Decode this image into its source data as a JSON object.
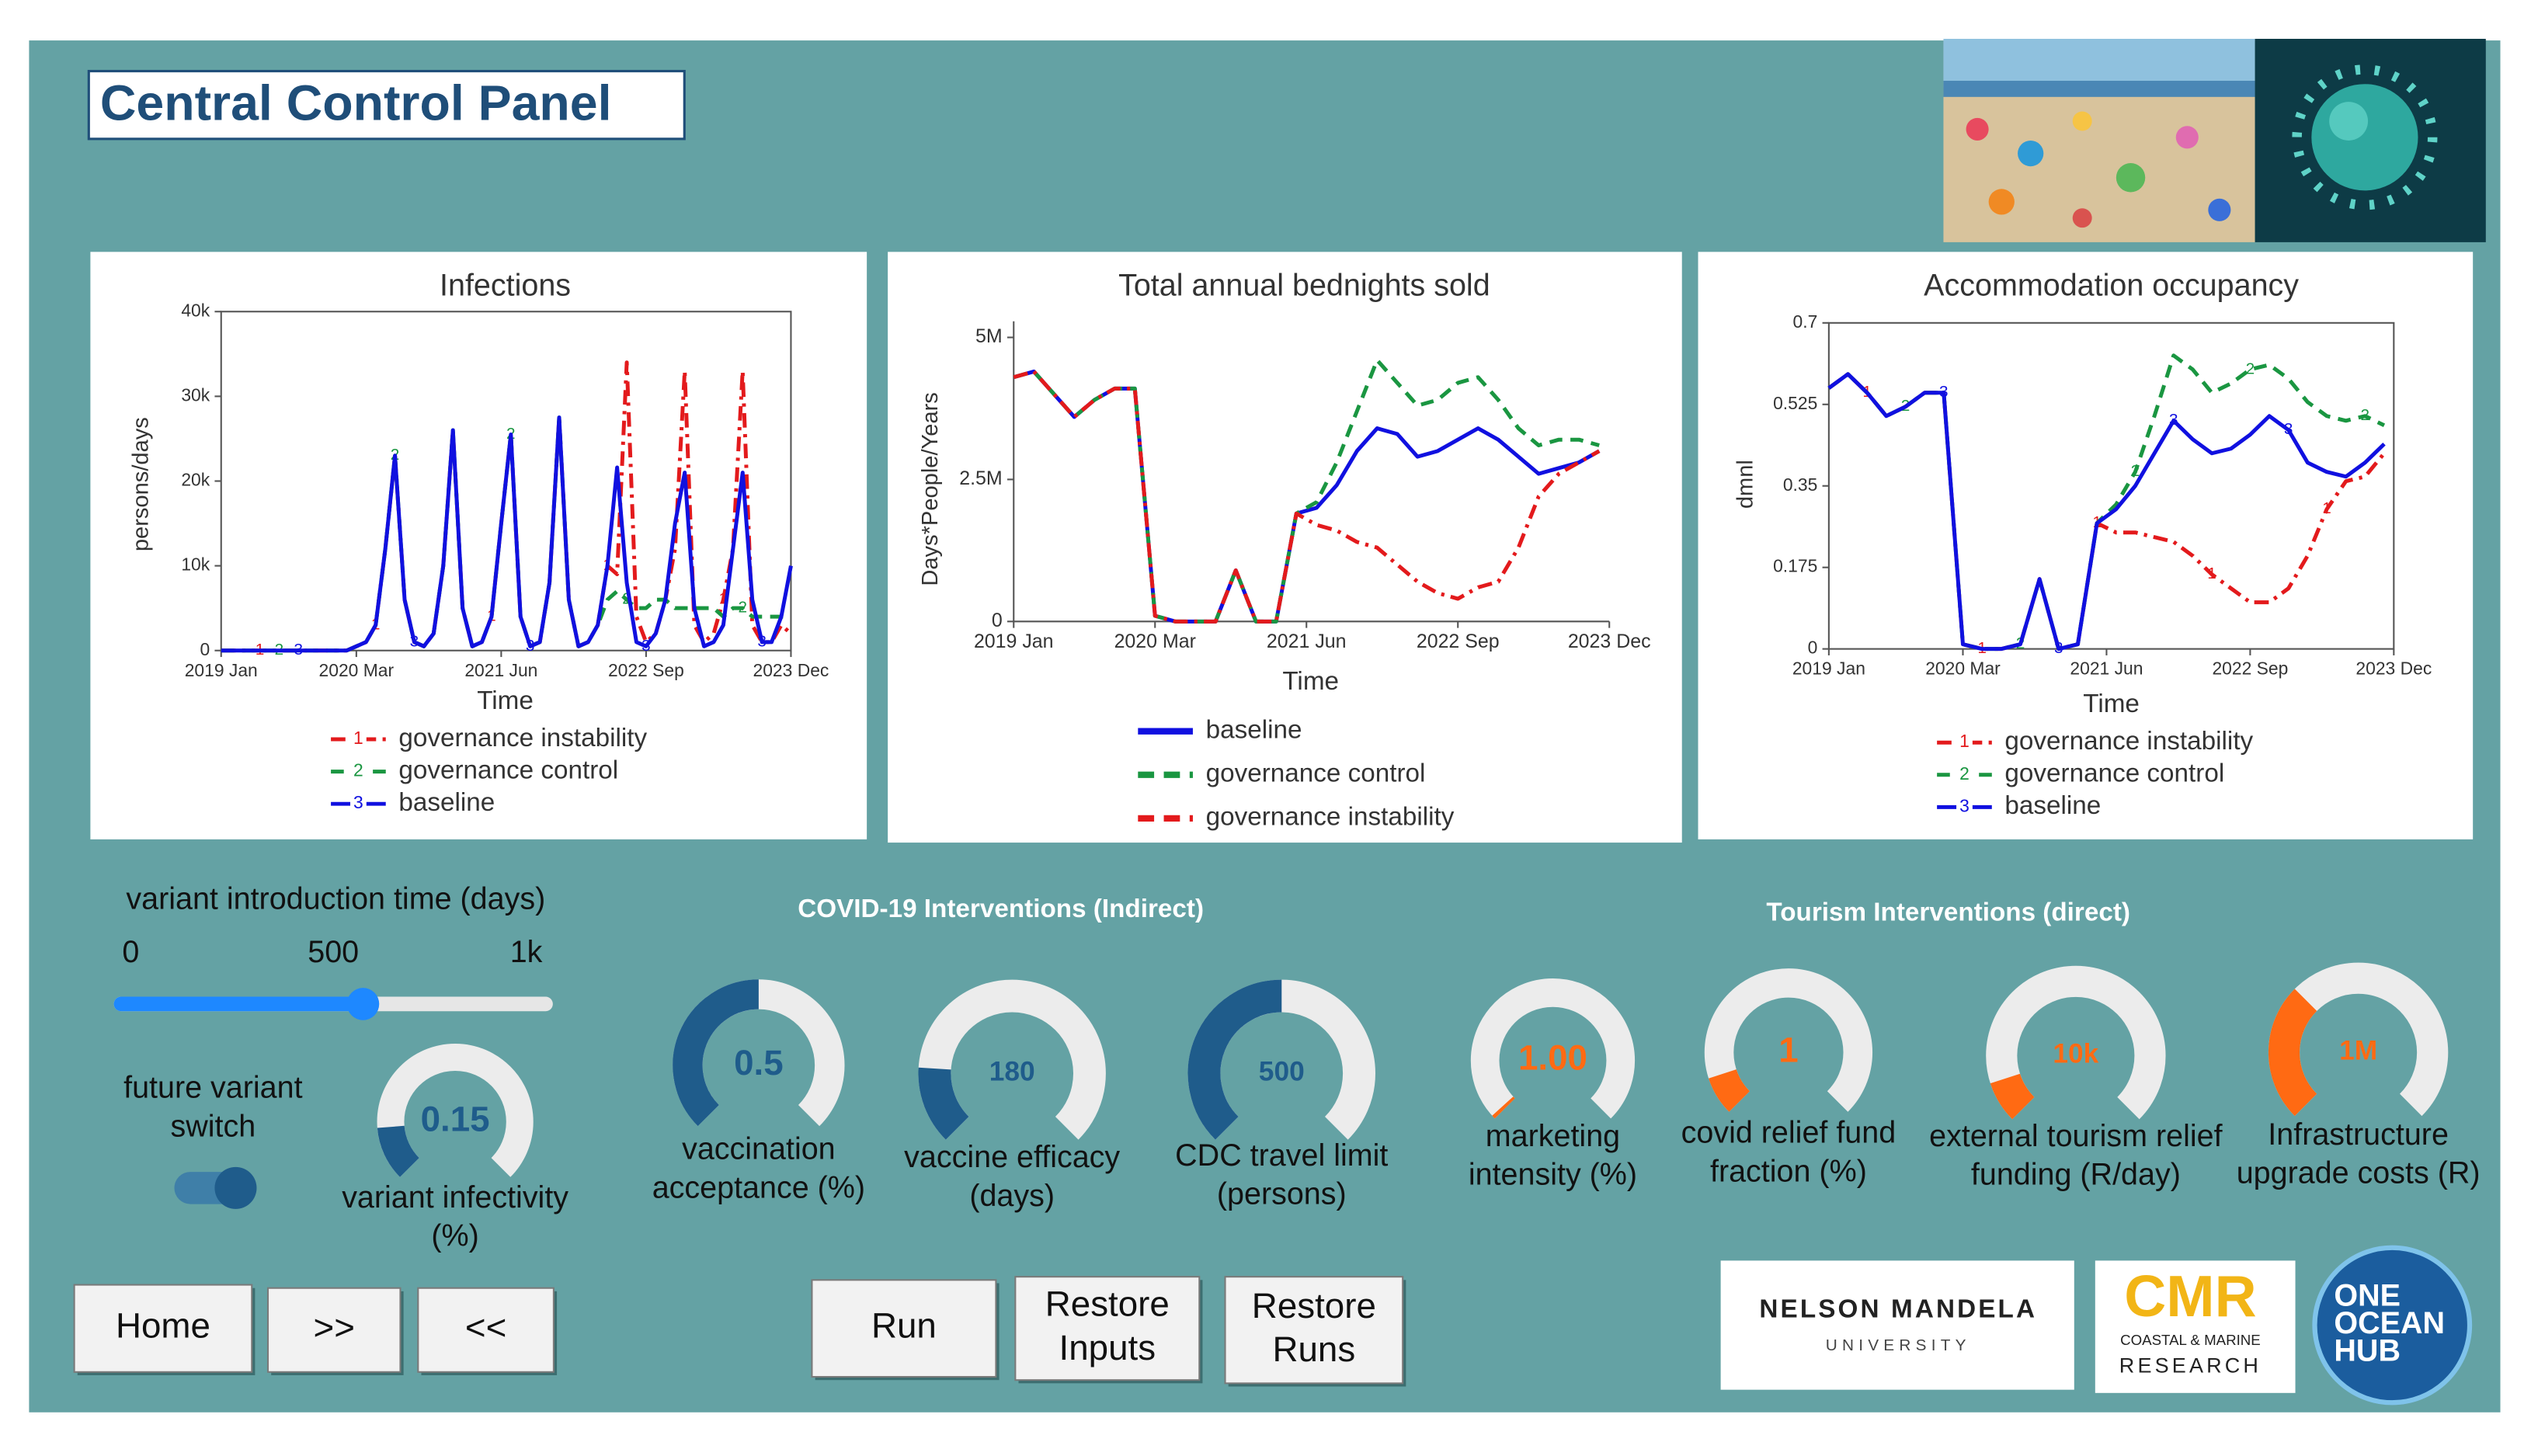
{
  "title": "Central Control Panel",
  "chart_data": [
    {
      "type": "line",
      "title": "Infections",
      "x_label": "Time",
      "y_label": "persons/days",
      "x": [
        "2019-01",
        "2019-02",
        "2019-03",
        "2019-04",
        "2019-05",
        "2019-06",
        "2019-07",
        "2019-08",
        "2019-09",
        "2019-10",
        "2019-11",
        "2019-12",
        "2020-01",
        "2020-02",
        "2020-03",
        "2020-04",
        "2020-05",
        "2020-06",
        "2020-07",
        "2020-08",
        "2020-09",
        "2020-10",
        "2020-11",
        "2020-12",
        "2021-01",
        "2021-02",
        "2021-03",
        "2021-04",
        "2021-05",
        "2021-06",
        "2021-07",
        "2021-08",
        "2021-09",
        "2021-10",
        "2021-11",
        "2021-12",
        "2022-01",
        "2022-02",
        "2022-03",
        "2022-04",
        "2022-05",
        "2022-06",
        "2022-07",
        "2022-08",
        "2022-09",
        "2022-10",
        "2022-11",
        "2022-12",
        "2023-01",
        "2023-02",
        "2023-03",
        "2023-04",
        "2023-05",
        "2023-06",
        "2023-07",
        "2023-08",
        "2023-09",
        "2023-10",
        "2023-11",
        "2023-12"
      ],
      "xlim": [
        "2019-01",
        "2023-12"
      ],
      "xticks": [
        {
          "value": "2019-01",
          "label": "2019 Jan"
        },
        {
          "value": "2020-03",
          "label": "2020 Mar"
        },
        {
          "value": "2021-06",
          "label": "2021 Jun"
        },
        {
          "value": "2022-09",
          "label": "2022 Sep"
        },
        {
          "value": "2023-12",
          "label": "2023 Dec"
        }
      ],
      "ylim": [
        0,
        40000
      ],
      "yticks": [
        0,
        {
          "value": 10000,
          "label": "10k"
        },
        {
          "value": 20000,
          "label": "20k"
        },
        {
          "value": 30000,
          "label": "30k"
        },
        {
          "value": 40000,
          "label": "40k"
        }
      ],
      "series": [
        {
          "name": "governance instability",
          "marker": "1",
          "color": "#e31a1c",
          "dash": "dashdot",
          "values": [
            0,
            0,
            0,
            0,
            0,
            0,
            0,
            0,
            0,
            0,
            0,
            0,
            0,
            0,
            500,
            1000,
            3000,
            12000,
            23000,
            6000,
            1000,
            500,
            2000,
            10000,
            26000,
            5000,
            500,
            1000,
            4000,
            15000,
            25500,
            4000,
            500,
            1000,
            8000,
            27500,
            6000,
            500,
            1000,
            3000,
            10000,
            9000,
            34000,
            4000,
            1000,
            2000,
            6000,
            12000,
            33000,
            3000,
            1000,
            2000,
            6000,
            12000,
            33000,
            3000,
            1000,
            1000,
            3000,
            2000
          ]
        },
        {
          "name": "governance control",
          "marker": "2",
          "color": "#1a9641",
          "dash": "dashed",
          "values": [
            0,
            0,
            0,
            0,
            0,
            0,
            0,
            0,
            0,
            0,
            0,
            0,
            0,
            0,
            500,
            1000,
            3000,
            12000,
            23000,
            6000,
            1000,
            500,
            2000,
            10000,
            26000,
            5000,
            500,
            1000,
            4000,
            15000,
            25500,
            4000,
            500,
            1000,
            8000,
            27500,
            6000,
            500,
            1000,
            3000,
            6000,
            7000,
            6000,
            5000,
            5000,
            6000,
            6000,
            5000,
            5000,
            5000,
            5000,
            5000,
            4000,
            5000,
            5000,
            4000,
            4000,
            4000,
            4000,
            4000
          ]
        },
        {
          "name": "baseline",
          "marker": "3",
          "color": "#1010e0",
          "dash": "solid",
          "values": [
            0,
            0,
            0,
            0,
            0,
            0,
            0,
            0,
            0,
            0,
            0,
            0,
            0,
            0,
            500,
            1000,
            3000,
            12000,
            23000,
            6000,
            1000,
            500,
            2000,
            10000,
            26000,
            5000,
            500,
            1000,
            4000,
            15000,
            25500,
            4000,
            500,
            1000,
            8000,
            27500,
            6000,
            500,
            1000,
            3000,
            10000,
            21600,
            8000,
            1000,
            500,
            2000,
            6000,
            15000,
            21000,
            5000,
            500,
            1000,
            3000,
            12000,
            21000,
            6000,
            1000,
            1000,
            4000,
            10000
          ]
        }
      ]
    },
    {
      "type": "line",
      "title": "Total annual bednights sold",
      "x_label": "Time",
      "y_label": "Days*People/Years",
      "x": [
        "2019-01",
        "2019-03",
        "2019-05",
        "2019-07",
        "2019-09",
        "2019-11",
        "2020-01",
        "2020-03",
        "2020-05",
        "2020-07",
        "2020-09",
        "2020-11",
        "2021-01",
        "2021-03",
        "2021-05",
        "2021-07",
        "2021-09",
        "2021-11",
        "2022-01",
        "2022-03",
        "2022-05",
        "2022-07",
        "2022-09",
        "2022-11",
        "2023-01",
        "2023-03",
        "2023-05",
        "2023-07",
        "2023-09",
        "2023-11"
      ],
      "xlim": [
        "2019-01",
        "2023-12"
      ],
      "xticks": [
        {
          "value": "2019-01",
          "label": "2019 Jan"
        },
        {
          "value": "2020-03",
          "label": "2020 Mar"
        },
        {
          "value": "2021-06",
          "label": "2021 Jun"
        },
        {
          "value": "2022-09",
          "label": "2022 Sep"
        },
        {
          "value": "2023-12",
          "label": "2023 Dec"
        }
      ],
      "ylim": [
        0,
        5000000
      ],
      "yticks": [
        0,
        {
          "value": 2500000,
          "label": "2.5M"
        },
        {
          "value": 5000000,
          "label": "5M"
        }
      ],
      "series": [
        {
          "name": "baseline",
          "color": "#1010e0",
          "dash": "solid",
          "values": [
            4300000,
            4400000,
            4000000,
            3600000,
            3900000,
            4100000,
            4100000,
            100000,
            0,
            0,
            0,
            900000,
            0,
            0,
            1900000,
            2000000,
            2400000,
            3000000,
            3400000,
            3300000,
            2900000,
            3000000,
            3200000,
            3400000,
            3200000,
            2900000,
            2600000,
            2700000,
            2800000,
            3000000
          ]
        },
        {
          "name": "governance control",
          "color": "#1a9641",
          "dash": "dashed",
          "values": [
            4300000,
            4400000,
            4000000,
            3600000,
            3900000,
            4100000,
            4100000,
            100000,
            0,
            0,
            0,
            900000,
            0,
            0,
            1900000,
            2100000,
            2800000,
            3700000,
            4600000,
            4200000,
            3800000,
            3900000,
            4200000,
            4300000,
            3900000,
            3400000,
            3100000,
            3200000,
            3200000,
            3100000
          ]
        },
        {
          "name": "governance instability",
          "color": "#e31a1c",
          "dash": "dashdot",
          "values": [
            4300000,
            4400000,
            4000000,
            3600000,
            3900000,
            4100000,
            4100000,
            100000,
            0,
            0,
            0,
            900000,
            0,
            0,
            1900000,
            1700000,
            1600000,
            1400000,
            1300000,
            1000000,
            700000,
            500000,
            400000,
            600000,
            700000,
            1300000,
            2200000,
            2600000,
            2800000,
            3000000
          ]
        }
      ]
    },
    {
      "type": "line",
      "title": "Accommodation occupancy",
      "x_label": "Time",
      "y_label": "dmnl",
      "x": [
        "2019-01",
        "2019-03",
        "2019-05",
        "2019-07",
        "2019-09",
        "2019-11",
        "2020-01",
        "2020-03",
        "2020-05",
        "2020-07",
        "2020-09",
        "2020-11",
        "2021-01",
        "2021-03",
        "2021-05",
        "2021-07",
        "2021-09",
        "2021-11",
        "2022-01",
        "2022-03",
        "2022-05",
        "2022-07",
        "2022-09",
        "2022-11",
        "2023-01",
        "2023-03",
        "2023-05",
        "2023-07",
        "2023-09",
        "2023-11"
      ],
      "xlim": [
        "2019-01",
        "2023-12"
      ],
      "xticks": [
        {
          "value": "2019-01",
          "label": "2019 Jan"
        },
        {
          "value": "2020-03",
          "label": "2020 Mar"
        },
        {
          "value": "2021-06",
          "label": "2021 Jun"
        },
        {
          "value": "2022-09",
          "label": "2022 Sep"
        },
        {
          "value": "2023-12",
          "label": "2023 Dec"
        }
      ],
      "ylim": [
        0,
        0.7
      ],
      "yticks": [
        0,
        0.175,
        0.35,
        0.525,
        0.7
      ],
      "series": [
        {
          "name": "governance instability",
          "marker": "1",
          "color": "#e31a1c",
          "dash": "dashdot",
          "values": [
            0.56,
            0.59,
            0.55,
            0.5,
            0.52,
            0.55,
            0.55,
            0.01,
            0,
            0,
            0.01,
            0.15,
            0,
            0.01,
            0.27,
            0.25,
            0.25,
            0.24,
            0.23,
            0.2,
            0.16,
            0.13,
            0.1,
            0.1,
            0.13,
            0.2,
            0.3,
            0.36,
            0.37,
            0.42
          ]
        },
        {
          "name": "governance control",
          "marker": "2",
          "color": "#1a9641",
          "dash": "dashed",
          "values": [
            0.56,
            0.59,
            0.55,
            0.5,
            0.52,
            0.55,
            0.55,
            0.01,
            0,
            0,
            0.01,
            0.15,
            0,
            0.01,
            0.27,
            0.31,
            0.38,
            0.5,
            0.63,
            0.6,
            0.55,
            0.57,
            0.6,
            0.61,
            0.58,
            0.53,
            0.5,
            0.49,
            0.5,
            0.48
          ]
        },
        {
          "name": "baseline",
          "marker": "3",
          "color": "#1010e0",
          "dash": "solid",
          "values": [
            0.56,
            0.59,
            0.55,
            0.5,
            0.52,
            0.55,
            0.55,
            0.01,
            0,
            0,
            0.01,
            0.15,
            0,
            0.01,
            0.27,
            0.3,
            0.35,
            0.42,
            0.49,
            0.45,
            0.42,
            0.43,
            0.46,
            0.5,
            0.47,
            0.4,
            0.38,
            0.37,
            0.4,
            0.44
          ]
        }
      ]
    }
  ],
  "controls": {
    "slider": {
      "label": "variant introduction time (days)",
      "min": 0,
      "max": 1000,
      "value": 570,
      "ticks": [
        0,
        500,
        {
          "value": 1000,
          "label": "1k"
        }
      ]
    },
    "switch": {
      "label": [
        "future variant",
        "switch"
      ],
      "on": true
    },
    "section_headers": [
      "COVID-19 Interventions (Indirect)",
      "Tourism Interventions (direct)"
    ],
    "gauges": [
      {
        "label": [
          "variant infectivity",
          "(%)"
        ],
        "value": 0.15,
        "min": 0,
        "max": 1,
        "color": "#1f5c8b"
      },
      {
        "label": [
          "vaccination",
          "acceptance (%)"
        ],
        "value": 0.5,
        "min": 0,
        "max": 1,
        "color": "#1f5c8b"
      },
      {
        "label": [
          "vaccine efficacy",
          "(days)"
        ],
        "value": 180,
        "min": 0,
        "max": 1000,
        "color": "#1f5c8b"
      },
      {
        "label": [
          "CDC travel limit",
          "(persons)"
        ],
        "value": 500,
        "min": 0,
        "max": 1000,
        "color": "#1f5c8b"
      },
      {
        "label": [
          "marketing",
          "intensity (%)"
        ],
        "value": 1,
        "value_label": "1.00",
        "min": 0,
        "max": 100,
        "color": "#ff6a13"
      },
      {
        "label": [
          "covid relief fund",
          "fraction (%)"
        ],
        "value": 1,
        "min": 0,
        "max": 10,
        "color": "#ff6a13"
      },
      {
        "label": [
          "external tourism relief",
          "funding (R/day)"
        ],
        "value": 10000,
        "value_label": "10k",
        "min": 0,
        "max": 100000,
        "color": "#ff6a13"
      },
      {
        "label": [
          "Infrastructure",
          "upgrade costs (R)"
        ],
        "value": 1000000,
        "value_label": "1M",
        "min": 0,
        "max": 3000000,
        "color": "#ff6a13"
      }
    ]
  },
  "buttons": [
    [
      "Home"
    ],
    [
      ">>"
    ],
    [
      "<<"
    ],
    [
      "Run"
    ],
    [
      "Restore",
      "Inputs"
    ],
    [
      "Restore",
      "Runs"
    ]
  ],
  "logos": {
    "nmu": {
      "name": "NELSON MANDELA",
      "sub": "UNIVERSITY"
    },
    "cmr": {
      "name": "CMR",
      "sub": [
        "COASTAL & MARINE",
        "RESEARCH"
      ]
    },
    "ooh": [
      "ONE",
      "OCEAN",
      "HUB"
    ]
  }
}
